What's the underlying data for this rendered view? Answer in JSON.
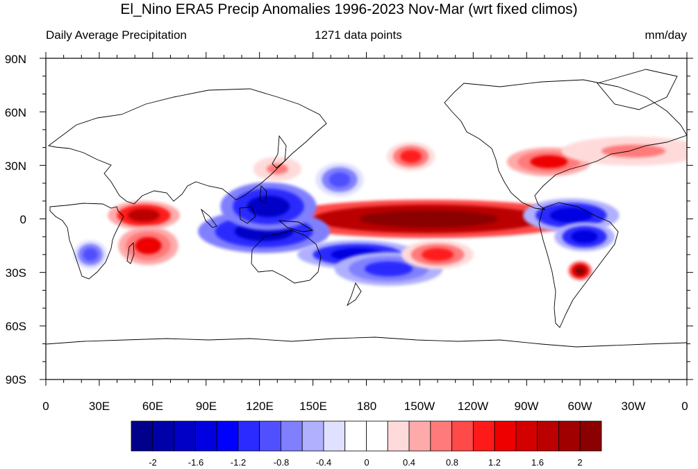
{
  "title": "El_Nino ERA5 Precip Anomalies 1996-2023 Nov-Mar (wrt fixed climos)",
  "subtitle_left": "Daily Average Precipitation",
  "subtitle_center": "1271 data points",
  "subtitle_right": "mm/day",
  "lat_labels": [
    "90N",
    "60N",
    "30N",
    "0",
    "30S",
    "60S",
    "90S"
  ],
  "lon_labels": [
    "0",
    "30E",
    "60E",
    "90E",
    "120E",
    "150E",
    "180",
    "150W",
    "120W",
    "90W",
    "60W",
    "30W",
    "0"
  ],
  "colorbar": {
    "colors": [
      "#00008b",
      "#0000a8",
      "#0000c6",
      "#0000e0",
      "#0000ff",
      "#2b2bff",
      "#5050ff",
      "#8080ff",
      "#b0b0ff",
      "#e0e0ff",
      "#ffffff",
      "#ffffff",
      "#ffdada",
      "#ffaaaa",
      "#ff7a7a",
      "#ff4a4a",
      "#ff1a1a",
      "#ee0000",
      "#d40000",
      "#ba0000",
      "#a00000",
      "#8b0000"
    ],
    "labels": [
      "-2",
      "-1.6",
      "-1.2",
      "-0.8",
      "-0.4",
      "0",
      "0.4",
      "0.8",
      "1.2",
      "1.6",
      "2"
    ]
  },
  "chart_data": {
    "type": "heatmap",
    "units": "mm/day",
    "lon_range": [
      0,
      360
    ],
    "lat_range": [
      -90,
      90
    ],
    "anomaly_features": [
      {
        "lon_start": 150,
        "lon_end": 280,
        "lat_center": 0,
        "lat_halfwidth": 8,
        "value": 2.5
      },
      {
        "lon_start": 95,
        "lon_end": 150,
        "lat_center": -7,
        "lat_halfwidth": 9,
        "value": -1.8
      },
      {
        "lon_start": 105,
        "lon_end": 145,
        "lat_center": 7,
        "lat_halfwidth": 10,
        "value": -1.8
      },
      {
        "lon_start": 150,
        "lon_end": 200,
        "lat_center": -20,
        "lat_halfwidth": 6,
        "value": -1.6
      },
      {
        "lon_start": 170,
        "lon_end": 215,
        "lat_center": -28,
        "lat_halfwidth": 7,
        "value": -1.2
      },
      {
        "lon_start": 155,
        "lon_end": 175,
        "lat_center": 22,
        "lat_halfwidth": 7,
        "value": -1.0
      },
      {
        "lon_start": 275,
        "lon_end": 315,
        "lat_center": 2,
        "lat_halfwidth": 7,
        "value": -1.6
      },
      {
        "lon_start": 290,
        "lon_end": 315,
        "lat_center": -10,
        "lat_halfwidth": 6,
        "value": -1.6
      },
      {
        "lon_start": 40,
        "lon_end": 70,
        "lat_center": 2,
        "lat_halfwidth": 6,
        "value": 1.6
      },
      {
        "lon_start": 45,
        "lon_end": 70,
        "lat_center": -15,
        "lat_halfwidth": 8,
        "value": 1.2
      },
      {
        "lon_start": 18,
        "lon_end": 32,
        "lat_center": -20,
        "lat_halfwidth": 6,
        "value": -1.0
      },
      {
        "lon_start": 295,
        "lon_end": 305,
        "lat_center": -29,
        "lat_halfwidth": 4,
        "value": 2.0
      },
      {
        "lon_start": 265,
        "lon_end": 300,
        "lat_center": 32,
        "lat_halfwidth": 6,
        "value": 1.2
      },
      {
        "lon_start": 195,
        "lon_end": 215,
        "lat_center": 35,
        "lat_halfwidth": 6,
        "value": 1.0
      },
      {
        "lon_start": 205,
        "lon_end": 235,
        "lat_center": -20,
        "lat_halfwidth": 6,
        "value": 1.0
      },
      {
        "lon_start": 300,
        "lon_end": 360,
        "lat_center": 38,
        "lat_halfwidth": 6,
        "value": 0.6
      },
      {
        "lon_start": 120,
        "lon_end": 140,
        "lat_center": 28,
        "lat_halfwidth": 5,
        "value": 0.6
      }
    ]
  }
}
